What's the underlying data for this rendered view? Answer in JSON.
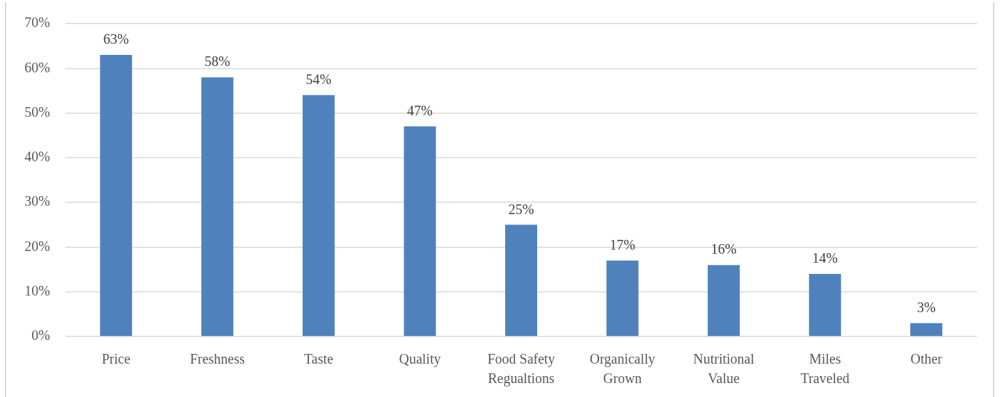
{
  "chart_data": {
    "type": "bar",
    "categories": [
      "Price",
      "Freshness",
      "Taste",
      "Quality",
      "Food Safety Regualtions",
      "Organically Grown",
      "Nutritional Value",
      "Miles Traveled",
      "Other"
    ],
    "values": [
      63,
      58,
      54,
      47,
      25,
      17,
      16,
      14,
      3
    ],
    "value_labels": [
      "63%",
      "58%",
      "54%",
      "47%",
      "25%",
      "17%",
      "16%",
      "14%",
      "3%"
    ],
    "color": "#4f81bd",
    "ylim": [
      0,
      70
    ],
    "yticks": [
      {
        "value": 0,
        "label": "0%"
      },
      {
        "value": 10,
        "label": "10%"
      },
      {
        "value": 20,
        "label": "20%"
      },
      {
        "value": 30,
        "label": "30%"
      },
      {
        "value": 40,
        "label": "40%"
      },
      {
        "value": 50,
        "label": "50%"
      },
      {
        "value": 60,
        "label": "60%"
      },
      {
        "value": 70,
        "label": "70%"
      }
    ],
    "grid": "y"
  }
}
